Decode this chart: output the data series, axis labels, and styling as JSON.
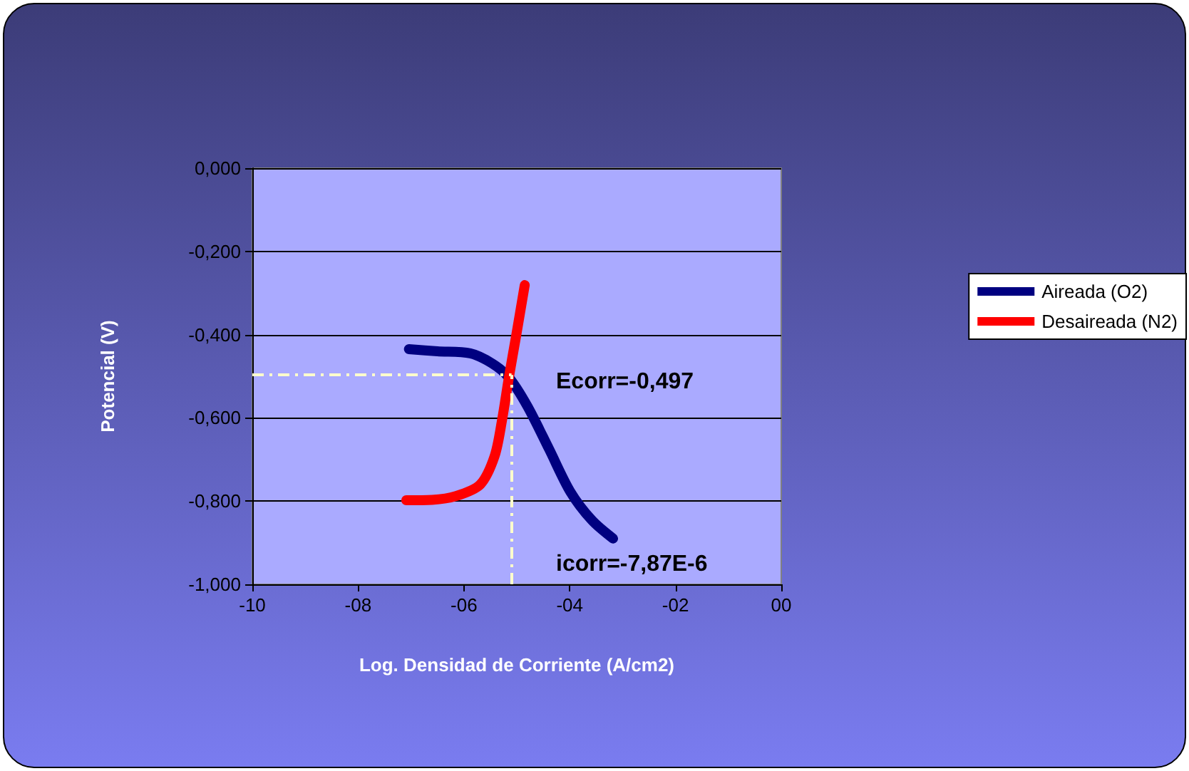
{
  "chart_data": {
    "type": "line",
    "xlabel": "Log. Densidad de Corriente (A/cm2)",
    "ylabel": "Potencial (V)",
    "xlim": [
      -10,
      0
    ],
    "xticks": [
      -10,
      {
        "value": -8,
        "label": "-08"
      },
      {
        "value": -6,
        "label": "-06"
      },
      {
        "value": -4,
        "label": "-04"
      },
      {
        "value": -2,
        "label": "-02"
      },
      {
        "value": 0,
        "label": "00"
      }
    ],
    "ylim": [
      -1,
      0
    ],
    "yticks": [
      {
        "value": -1,
        "label": "-1,000"
      },
      {
        "value": -0.8,
        "label": "-0,800"
      },
      {
        "value": -0.6,
        "label": "-0,600"
      },
      {
        "value": -0.4,
        "label": "-0,400"
      },
      {
        "value": -0.2,
        "label": "-0,200"
      },
      {
        "value": 0,
        "label": "0,000"
      }
    ],
    "series": [
      {
        "name": "Aireada (O2)",
        "color": "#000080",
        "x": [
          -7.04,
          -6.5,
          -5.88,
          -5.47,
          -5.15,
          -4.8,
          -4.39,
          -3.99,
          -3.58,
          -3.18
        ],
        "values": [
          -0.435,
          -0.44,
          -0.445,
          -0.469,
          -0.503,
          -0.572,
          -0.675,
          -0.777,
          -0.846,
          -0.89
        ]
      },
      {
        "name": "Desaireada (N2)",
        "color": "#ff0000",
        "x": [
          -7.09,
          -6.6,
          -6.15,
          -5.69,
          -5.42,
          -5.28,
          -5.15,
          -5.01,
          -4.85
        ],
        "values": [
          -0.798,
          -0.797,
          -0.788,
          -0.76,
          -0.692,
          -0.606,
          -0.503,
          -0.401,
          -0.281
        ]
      }
    ],
    "ref_lines": [
      {
        "axis": "y",
        "value": -0.497,
        "color": "#ffffcc",
        "line_style": "dashed"
      },
      {
        "axis": "x",
        "value": -5.1,
        "color": "#ffffcc",
        "line_style": "dashed"
      }
    ],
    "annotations": [
      "Ecorr=-0,497",
      "icorr=-7,87E-6"
    ],
    "grid": "y",
    "legend": "right",
    "marker": "none",
    "line_style": "solid"
  }
}
